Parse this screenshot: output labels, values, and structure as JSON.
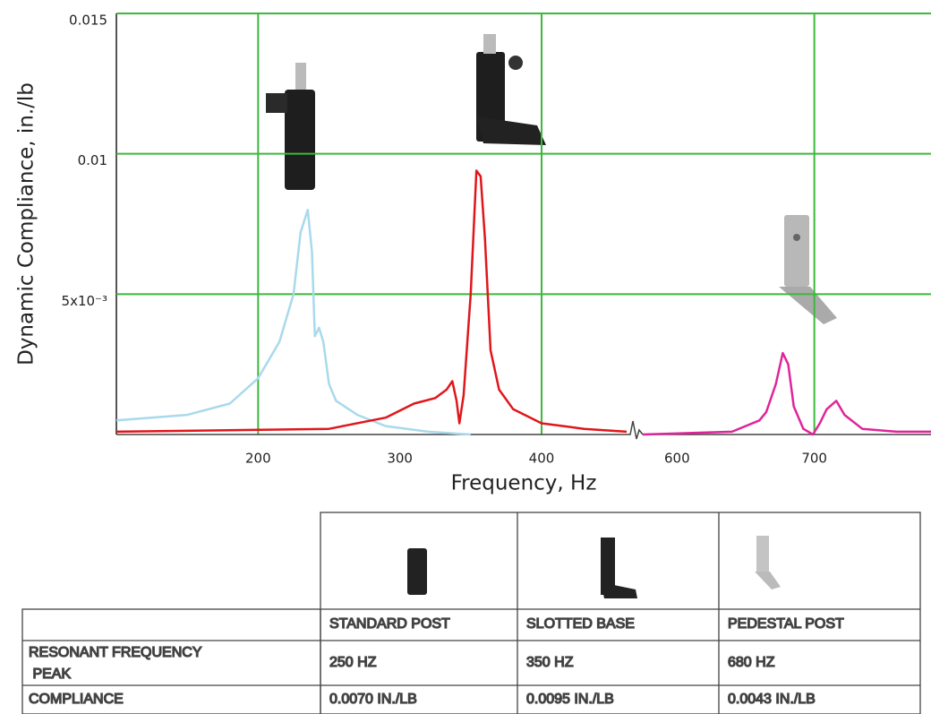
{
  "chart_data": {
    "type": "line",
    "ylabel": "Dynamic Compliance, in./lb",
    "xlabel": "Frequency, Hz",
    "xlim": [
      100,
      785
    ],
    "x_break": [
      460,
      575
    ],
    "xticks": [
      200,
      300,
      400,
      600,
      700
    ],
    "xgrid": [
      200,
      400,
      700
    ],
    "ylim": [
      0,
      0.015
    ],
    "yticks": [
      {
        "value": 0.005,
        "label": "5x10⁻³"
      },
      0.01,
      0.015
    ],
    "grid": true,
    "series": [
      {
        "name": "STANDARD POST",
        "color": "#a9d9ec",
        "x": [
          100,
          150,
          180,
          200,
          215,
          225,
          230,
          235,
          238,
          240,
          243,
          246,
          250,
          255,
          270,
          290,
          320,
          350
        ],
        "values": [
          0.0005,
          0.0007,
          0.0011,
          0.002,
          0.0033,
          0.005,
          0.0072,
          0.008,
          0.0065,
          0.0035,
          0.0038,
          0.0033,
          0.0018,
          0.0012,
          0.0007,
          0.0003,
          0.0001,
          0
        ]
      },
      {
        "name": "SLOTTED BASE",
        "color": "#e0161b",
        "x": [
          100,
          250,
          290,
          310,
          325,
          333,
          337,
          340,
          342,
          345,
          350,
          354,
          357,
          360,
          364,
          370,
          380,
          400,
          430,
          460
        ],
        "values": [
          0.0001,
          0.0002,
          0.0006,
          0.0011,
          0.0013,
          0.0016,
          0.0019,
          0.0012,
          0.0004,
          0.0014,
          0.005,
          0.0094,
          0.0092,
          0.007,
          0.003,
          0.0016,
          0.0009,
          0.0004,
          0.0002,
          0.0001
        ]
      },
      {
        "name": "PEDESTAL POST",
        "color": "#e0249a",
        "x": [
          575,
          640,
          660,
          665,
          672,
          677,
          681,
          685,
          692,
          699,
          704,
          709,
          716,
          722,
          735,
          760,
          785
        ],
        "values": [
          0,
          0.0001,
          0.0005,
          0.0008,
          0.0018,
          0.0029,
          0.0025,
          0.001,
          0.0002,
          0,
          0.0004,
          0.0009,
          0.0012,
          0.0007,
          0.0002,
          0.0001,
          0.0001
        ]
      }
    ]
  },
  "table": {
    "columns": [
      "STANDARD POST",
      "SLOTTED BASE",
      "PEDESTAL POST"
    ],
    "rows": [
      [
        "RESONANT FREQUENCY PEAK",
        "250 HZ",
        "350 HZ",
        "680 HZ"
      ],
      [
        "COMPLIANCE",
        "0.0070 IN./LB",
        "0.0095 IN./LB",
        "0.0043 IN./LB"
      ]
    ]
  }
}
